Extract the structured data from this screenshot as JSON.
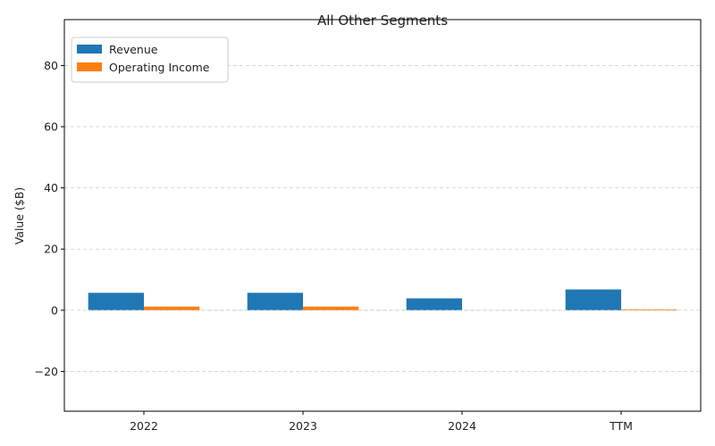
{
  "chart_data": {
    "type": "bar",
    "title": "All Other Segments",
    "xlabel": "",
    "ylabel": "Value ($B)",
    "categories": [
      "2022",
      "2023",
      "2024",
      "TTM"
    ],
    "series": [
      {
        "name": "Revenue",
        "color": "#1f77b4",
        "values": [
          5.7,
          5.7,
          3.9,
          6.8
        ]
      },
      {
        "name": "Operating Income",
        "color": "#ff7f0e",
        "values": [
          1.2,
          1.2,
          0.0,
          0.3
        ]
      }
    ],
    "ylim": [
      -33,
      95
    ],
    "yticks": [
      -20,
      0,
      20,
      40,
      60,
      80
    ],
    "ytick_labels": [
      "−20",
      "0",
      "20",
      "40",
      "60",
      "80"
    ],
    "grid": "y-dashed",
    "legend_position": "top-left"
  }
}
